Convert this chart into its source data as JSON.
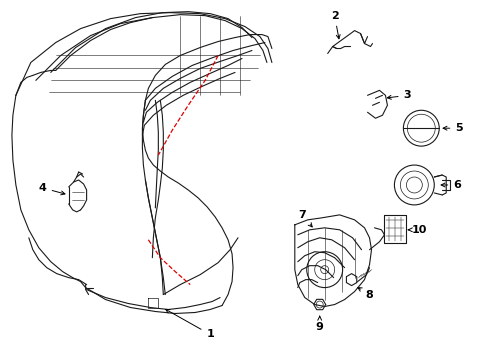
{
  "bg_color": "#ffffff",
  "fig_width": 4.89,
  "fig_height": 3.6,
  "dpi": 100,
  "font_size_labels": 8,
  "text_color": "#000000",
  "line_color": "#1a1a1a",
  "red_color": "#dd0000"
}
